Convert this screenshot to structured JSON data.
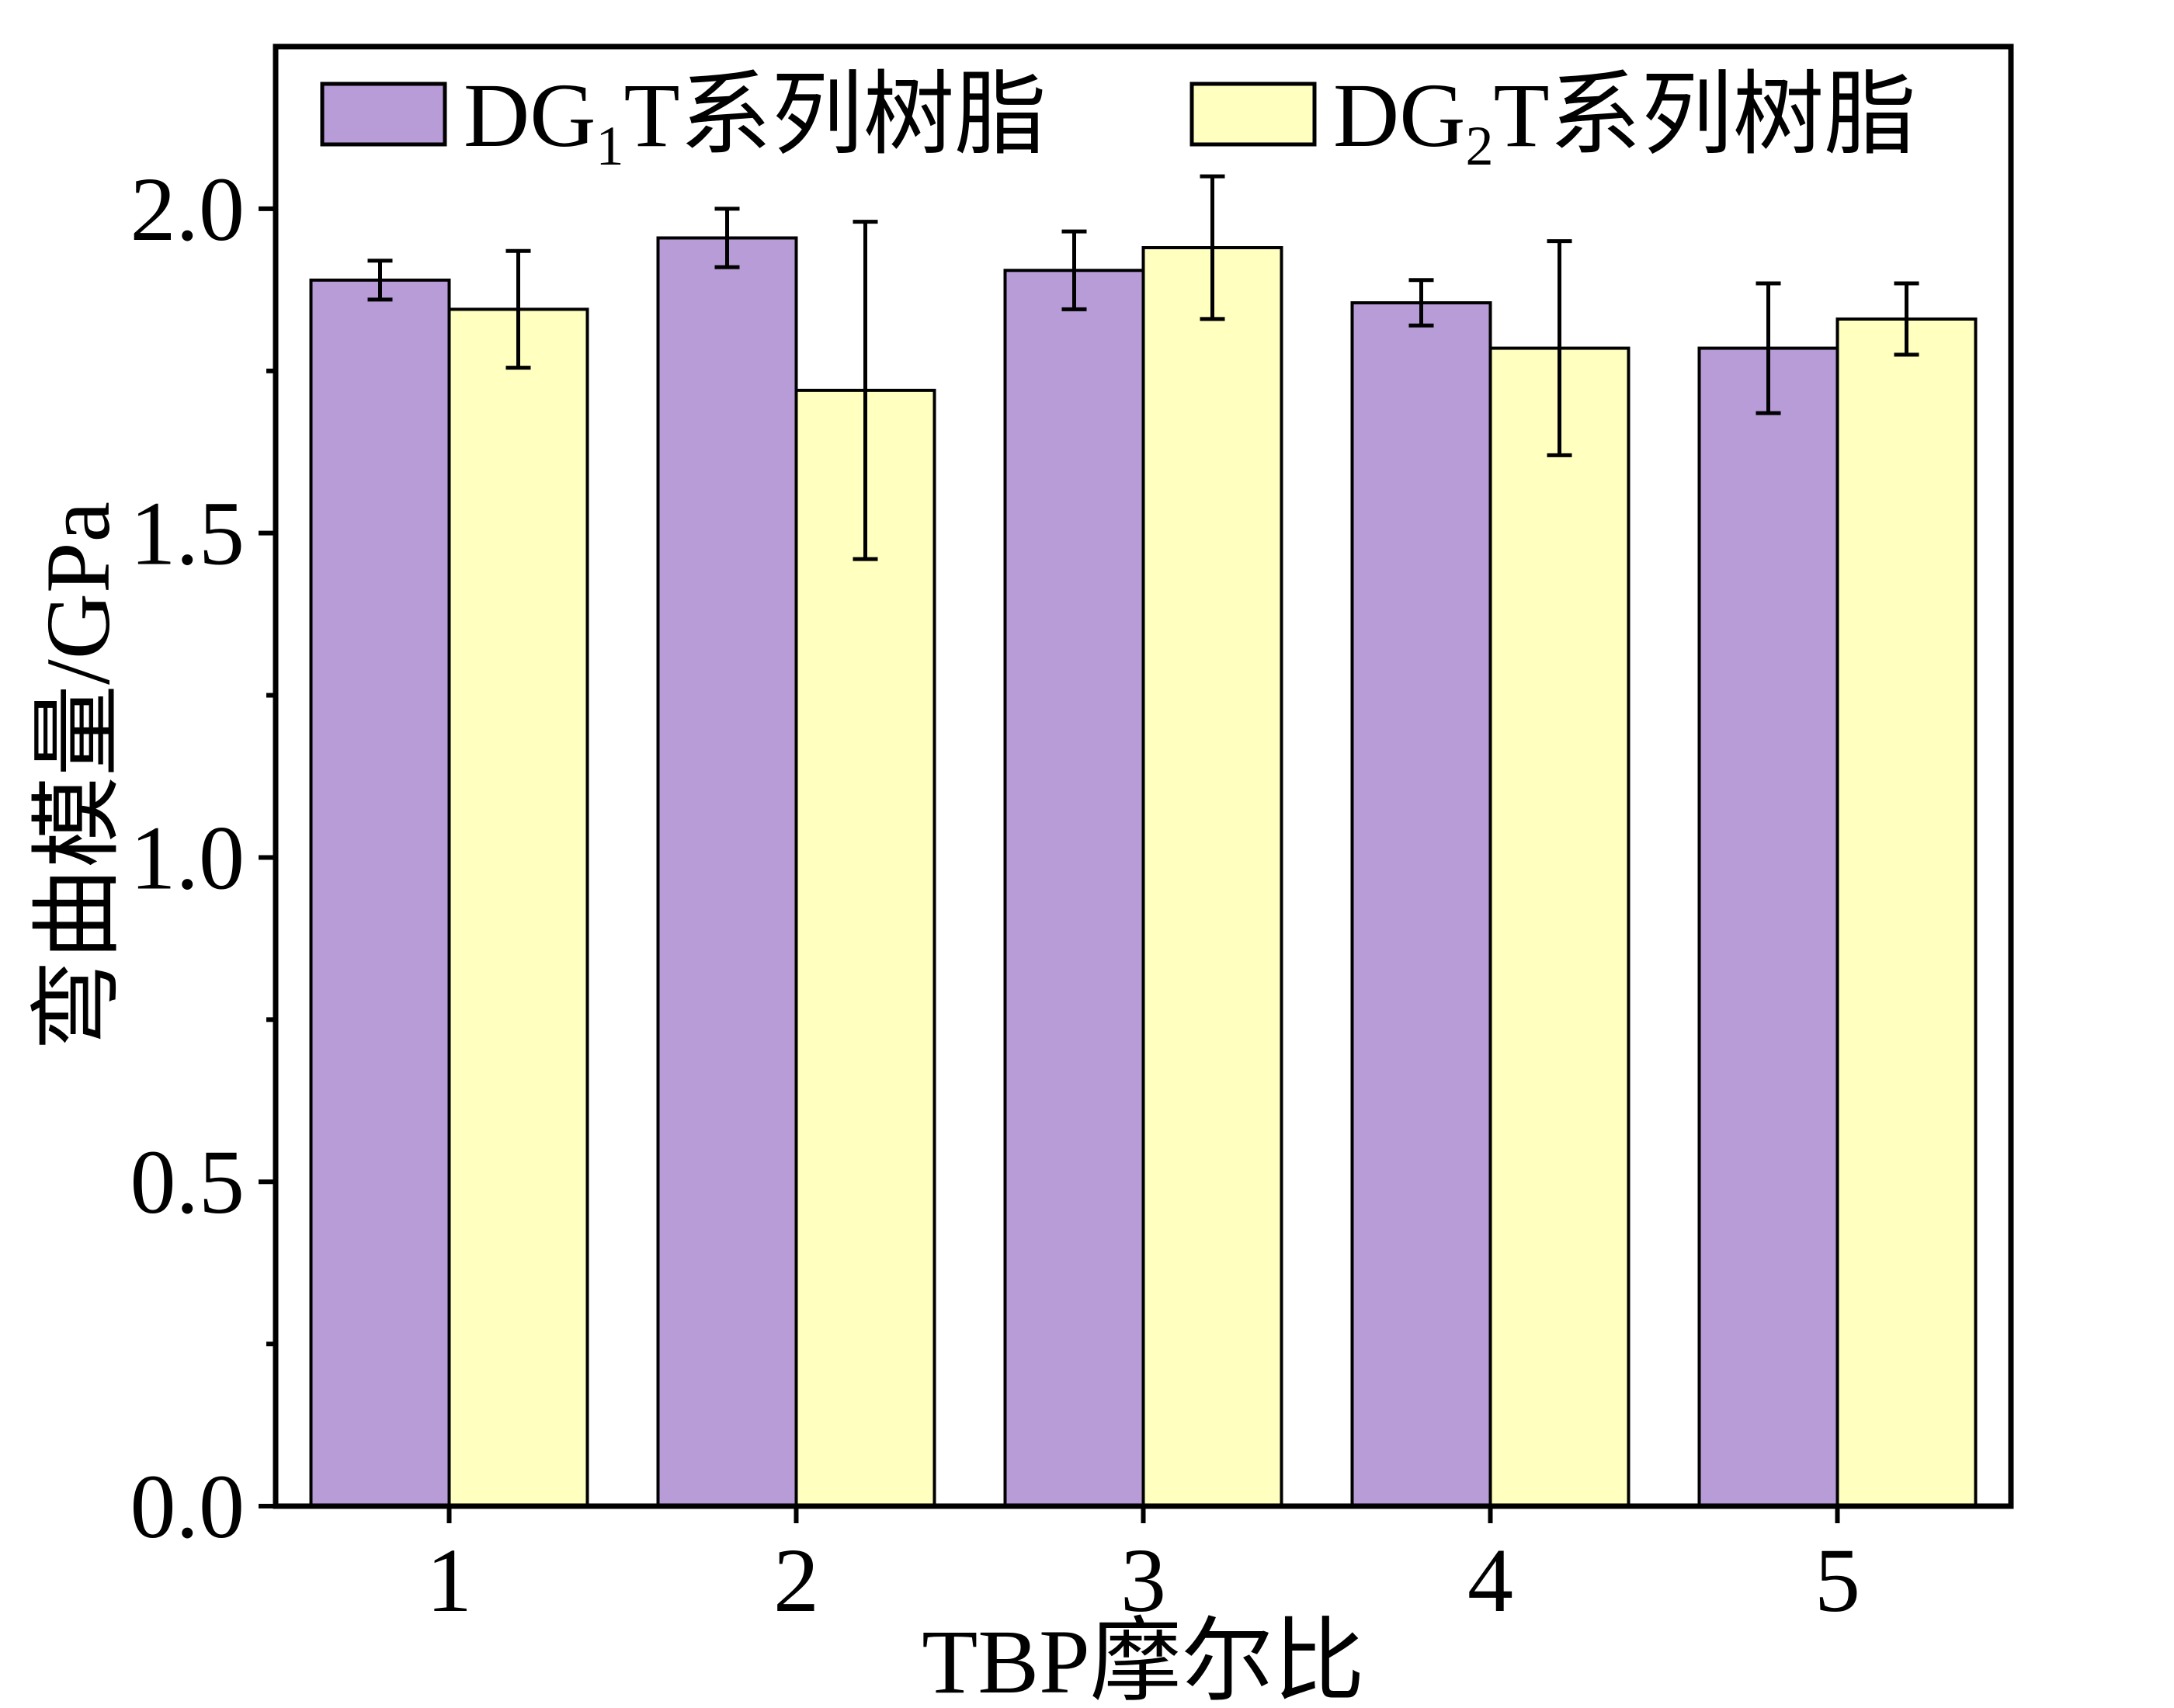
{
  "chart_data": {
    "type": "bar",
    "xlabel": "TBP摩尔比",
    "ylabel": "弯曲模量/GPa",
    "categories": [
      "1",
      "2",
      "3",
      "4",
      "5"
    ],
    "ylim": [
      0,
      2.25
    ],
    "yticks": [
      "0.0",
      "0.5",
      "1.0",
      "1.5",
      "2.0"
    ],
    "legend_position": "top",
    "series": [
      {
        "name": "DG1T系列树脂",
        "name_parts": {
          "prefix": "DG",
          "sub": "1",
          "suffix": "T系列树脂"
        },
        "color": "#b89cd8",
        "values": [
          1.89,
          1.955,
          1.905,
          1.855,
          1.785
        ],
        "errors": [
          0.03,
          0.045,
          0.06,
          0.035,
          0.1
        ]
      },
      {
        "name": "DG2T系列树脂",
        "name_parts": {
          "prefix": "DG",
          "sub": "2",
          "suffix": "T系列树脂"
        },
        "color": "#ffffc0",
        "values": [
          1.845,
          1.72,
          1.94,
          1.785,
          1.83
        ],
        "errors": [
          0.09,
          0.26,
          0.11,
          0.165,
          0.055
        ]
      }
    ]
  }
}
